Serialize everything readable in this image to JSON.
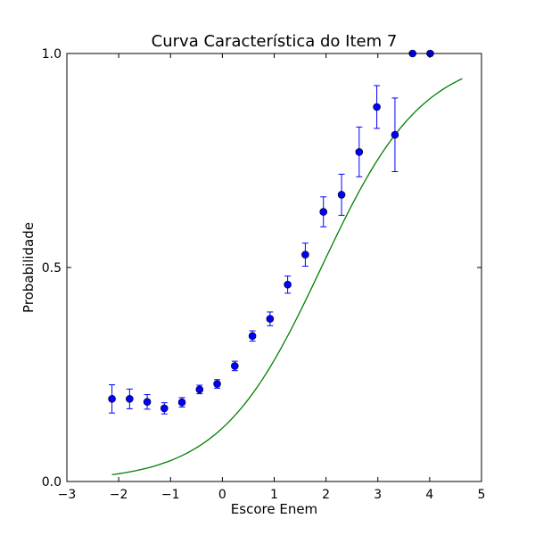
{
  "chart_data": {
    "type": "scatter",
    "title": "Curva Característica do Item 7",
    "xlabel": "Escore Enem",
    "ylabel": "Probabilidade",
    "xlim": [
      -3,
      5
    ],
    "ylim": [
      0.0,
      1.0
    ],
    "x_ticks": [
      "−3",
      "−2",
      "−1",
      "0",
      "1",
      "2",
      "3",
      "4",
      "5"
    ],
    "y_ticks": [
      "0.0",
      "0.5",
      "1.0"
    ],
    "grid": false,
    "colors": {
      "points": "#0000ff",
      "errorbars": "#0000ff",
      "curve": "#008000"
    },
    "series": [
      {
        "type": "errorbar",
        "x": [
          -2.13,
          -1.79,
          -1.45,
          -1.12,
          -0.78,
          -0.44,
          -0.1,
          0.24,
          0.58,
          0.92,
          1.26,
          1.6,
          1.95,
          2.3,
          2.64,
          2.98,
          3.33,
          3.67,
          4.01
        ],
        "y": [
          0.193,
          0.193,
          0.186,
          0.171,
          0.185,
          0.215,
          0.228,
          0.27,
          0.34,
          0.38,
          0.46,
          0.53,
          0.63,
          0.67,
          0.77,
          0.875,
          0.81,
          1.0,
          1.0
        ],
        "yerr": [
          0.033,
          0.023,
          0.017,
          0.013,
          0.011,
          0.01,
          0.01,
          0.011,
          0.012,
          0.016,
          0.02,
          0.027,
          0.035,
          0.048,
          0.058,
          0.05,
          0.086,
          0.0,
          0.0
        ]
      },
      {
        "type": "line",
        "curve": "3PL",
        "a": 0.6,
        "b": 1.91,
        "c": 0.0,
        "x_range": [
          -2.13,
          4.63
        ]
      }
    ]
  }
}
